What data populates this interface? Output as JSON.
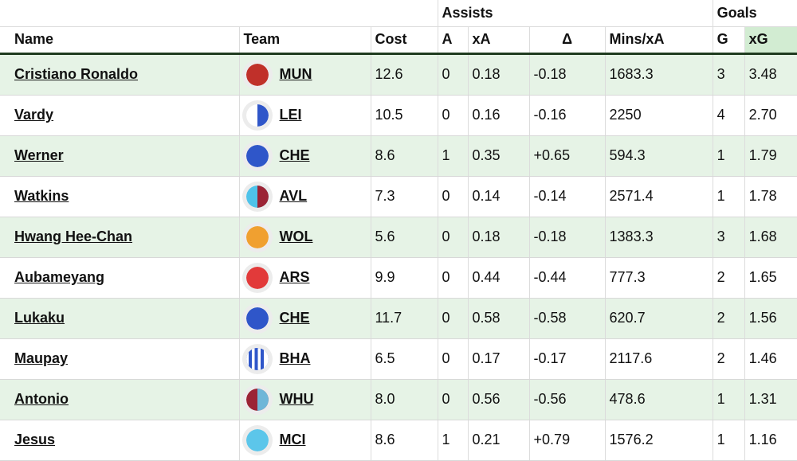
{
  "groups": {
    "assists": "Assists",
    "goals": "Goals"
  },
  "columns": {
    "name": "Name",
    "team": "Team",
    "cost": "Cost",
    "a": "A",
    "xa": "xA",
    "delta": "Δ",
    "mins_xa": "Mins/xA",
    "g": "G",
    "xg": "xG"
  },
  "rows": [
    {
      "name": "Cristiano Ronaldo",
      "team": "MUN",
      "kit": "mun-red-icon",
      "kit_colors": [
        "#c0302a"
      ],
      "cost": "12.6",
      "a": "0",
      "xa": "0.18",
      "delta": "-0.18",
      "mins_xa": "1683.3",
      "g": "3",
      "xg": "3.48"
    },
    {
      "name": "Vardy",
      "team": "LEI",
      "kit": "lei-blue-white-icon",
      "kit_colors": [
        "#ffffff",
        "#2f56c9"
      ],
      "cost": "10.5",
      "a": "0",
      "xa": "0.16",
      "delta": "-0.16",
      "mins_xa": "2250",
      "g": "4",
      "xg": "2.70"
    },
    {
      "name": "Werner",
      "team": "CHE",
      "kit": "che-blue-icon",
      "kit_colors": [
        "#2f56c9"
      ],
      "cost": "8.6",
      "a": "1",
      "xa": "0.35",
      "delta": "+0.65",
      "mins_xa": "594.3",
      "g": "1",
      "xg": "1.79"
    },
    {
      "name": "Watkins",
      "team": "AVL",
      "kit": "avl-claret-blue-icon",
      "kit_colors": [
        "#4fc3ea",
        "#9b2335"
      ],
      "cost": "7.3",
      "a": "0",
      "xa": "0.14",
      "delta": "-0.14",
      "mins_xa": "2571.4",
      "g": "1",
      "xg": "1.78"
    },
    {
      "name": "Hwang Hee-Chan",
      "team": "WOL",
      "kit": "wol-orange-icon",
      "kit_colors": [
        "#f0a030"
      ],
      "cost": "5.6",
      "a": "0",
      "xa": "0.18",
      "delta": "-0.18",
      "mins_xa": "1383.3",
      "g": "3",
      "xg": "1.68"
    },
    {
      "name": "Aubameyang",
      "team": "ARS",
      "kit": "ars-red-icon",
      "kit_colors": [
        "#e23a3a"
      ],
      "cost": "9.9",
      "a": "0",
      "xa": "0.44",
      "delta": "-0.44",
      "mins_xa": "777.3",
      "g": "2",
      "xg": "1.65"
    },
    {
      "name": "Lukaku",
      "team": "CHE",
      "kit": "che-blue-icon",
      "kit_colors": [
        "#2f56c9"
      ],
      "cost": "11.7",
      "a": "0",
      "xa": "0.58",
      "delta": "-0.58",
      "mins_xa": "620.7",
      "g": "2",
      "xg": "1.56"
    },
    {
      "name": "Maupay",
      "team": "BHA",
      "kit": "bha-stripes-icon",
      "kit_colors": [
        "#2f56c9",
        "#ffffff"
      ],
      "cost": "6.5",
      "a": "0",
      "xa": "0.17",
      "delta": "-0.17",
      "mins_xa": "2117.6",
      "g": "2",
      "xg": "1.46"
    },
    {
      "name": "Antonio",
      "team": "WHU",
      "kit": "whu-claret-blue-icon",
      "kit_colors": [
        "#9b2335",
        "#6fb6d8"
      ],
      "cost": "8.0",
      "a": "0",
      "xa": "0.56",
      "delta": "-0.56",
      "mins_xa": "478.6",
      "g": "1",
      "xg": "1.31"
    },
    {
      "name": "Jesus",
      "team": "MCI",
      "kit": "mci-sky-blue-icon",
      "kit_colors": [
        "#5cc6ea"
      ],
      "cost": "8.6",
      "a": "1",
      "xa": "0.21",
      "delta": "+0.79",
      "mins_xa": "1576.2",
      "g": "1",
      "xg": "1.16"
    }
  ]
}
